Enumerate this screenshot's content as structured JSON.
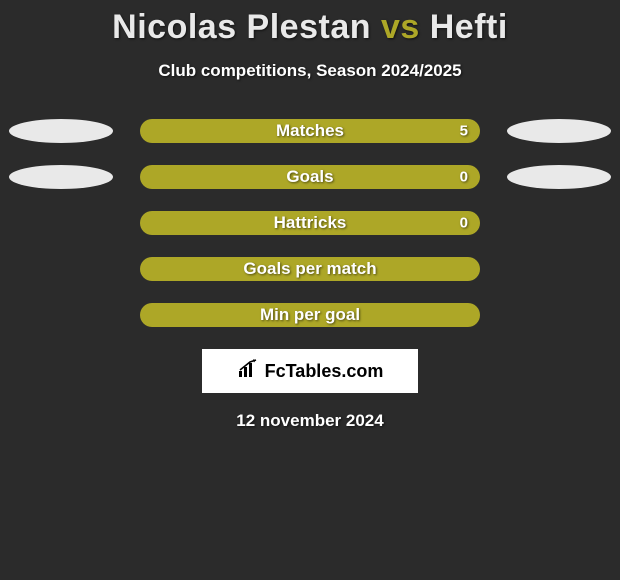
{
  "title": {
    "player1": "Nicolas Plestan",
    "vs": "vs",
    "player2": "Hefti",
    "player1_color": "#e9e9e9",
    "vs_color": "#ada727",
    "player2_color": "#e9e9e9",
    "fontsize": 34
  },
  "subtitle": {
    "text": "Club competitions, Season 2024/2025",
    "color": "#ffffff",
    "fontsize": 17
  },
  "background_color": "#2b2b2b",
  "ellipse_color": "#e9e9e9",
  "rows": [
    {
      "label": "Matches",
      "value": "5",
      "bar_color": "#ada727",
      "show_value": true,
      "show_left_ellipse": true,
      "show_right_ellipse": true
    },
    {
      "label": "Goals",
      "value": "0",
      "bar_color": "#ada727",
      "show_value": true,
      "show_left_ellipse": true,
      "show_right_ellipse": true
    },
    {
      "label": "Hattricks",
      "value": "0",
      "bar_color": "#ada727",
      "show_value": true,
      "show_left_ellipse": false,
      "show_right_ellipse": false
    },
    {
      "label": "Goals per match",
      "value": "",
      "bar_color": "#ada727",
      "show_value": false,
      "show_left_ellipse": false,
      "show_right_ellipse": false
    },
    {
      "label": "Min per goal",
      "value": "",
      "bar_color": "#ada727",
      "show_value": false,
      "show_left_ellipse": false,
      "show_right_ellipse": false
    }
  ],
  "logo": {
    "text": "FcTables.com",
    "box_bg": "#ffffff",
    "text_color": "#000000"
  },
  "date": {
    "text": "12 november 2024",
    "color": "#ffffff",
    "fontsize": 17
  }
}
